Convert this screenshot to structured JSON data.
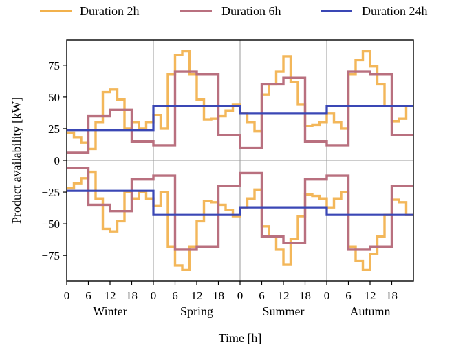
{
  "chart_data": {
    "type": "line",
    "step": true,
    "xlabel": "Time [h]",
    "ylabel": "Product availability [kW]",
    "ylim": [
      -95,
      95
    ],
    "xlim": [
      0,
      96
    ],
    "yticks": [
      75,
      50,
      25,
      0,
      -25,
      -50,
      -75
    ],
    "ytick_labels": [
      "75",
      "50",
      "25",
      "0",
      "−25",
      "−50",
      "−75"
    ],
    "xtick_positions": [
      0,
      6,
      12,
      18,
      24,
      30,
      36,
      42,
      48,
      54,
      60,
      66,
      72,
      78,
      84,
      90
    ],
    "xtick_labels": [
      "0",
      "6",
      "12",
      "18",
      "0",
      "6",
      "12",
      "18",
      "0",
      "6",
      "12",
      "18",
      "0",
      "6",
      "12",
      "18"
    ],
    "seasons": [
      {
        "name": "Winter",
        "center": 12
      },
      {
        "name": "Spring",
        "center": 36
      },
      {
        "name": "Summer",
        "center": 60
      },
      {
        "name": "Autumn",
        "center": 84
      }
    ],
    "season_dividers": [
      24,
      48,
      72
    ],
    "zero_line": true,
    "legend_position": "top",
    "series": [
      {
        "name": "Duration 2h",
        "color": "#f2b14c",
        "step_hours": 2,
        "values": [
          22,
          18,
          14,
          9,
          30,
          54,
          56,
          48,
          25,
          30,
          25,
          30,
          36,
          25,
          68,
          83,
          86,
          68,
          48,
          32,
          33,
          35,
          39,
          44,
          37,
          30,
          23,
          52,
          60,
          70,
          82,
          62,
          44,
          27,
          28,
          30,
          37,
          30,
          25,
          68,
          79,
          86,
          74,
          60,
          43,
          31,
          33,
          43
        ]
      },
      {
        "name": "Duration 6h",
        "color": "#b9707f",
        "step_hours": 6,
        "values": [
          6,
          35,
          40,
          15,
          12,
          70,
          68,
          20,
          10,
          60,
          65,
          15,
          12,
          70,
          68,
          20
        ]
      },
      {
        "name": "Duration 24h",
        "color": "#3a47b5",
        "step_hours": 24,
        "values": [
          24,
          43,
          37,
          43
        ]
      }
    ],
    "mirrored": true
  }
}
